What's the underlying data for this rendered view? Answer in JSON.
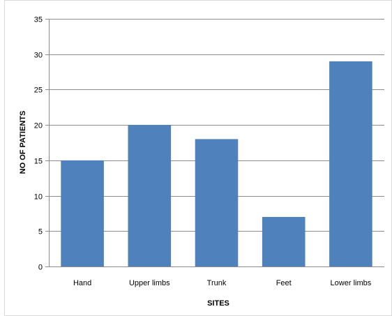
{
  "chart_data": {
    "type": "bar",
    "categories": [
      "Hand",
      "Upper limbs",
      "Trunk",
      "Feet",
      "Lower limbs"
    ],
    "values": [
      15,
      20,
      18,
      7,
      29
    ],
    "title": "",
    "xlabel": "SITES",
    "ylabel": "NO OF PATIENTS",
    "ylim": [
      0,
      35
    ],
    "yticks": [
      "0",
      "5",
      "10",
      "15",
      "20",
      "25",
      "30",
      "35"
    ],
    "grid": true,
    "legend": "none",
    "bar_color": "#4f81bd",
    "grid_color": "#8c8c8c",
    "axis_color": "#8c8c8c"
  }
}
